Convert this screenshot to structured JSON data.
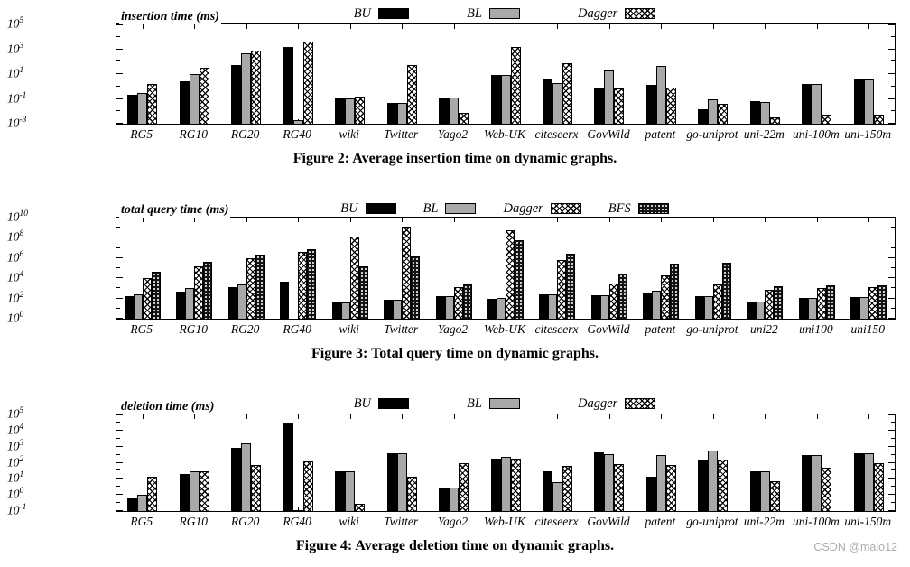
{
  "watermark": "CSDN @malo12",
  "colors": {
    "bar_black": "#000000",
    "bar_gray": "#a9a9a9",
    "axis": "#000000",
    "watermark_gray": "#adadad"
  },
  "chart_data": [
    {
      "type": "bar",
      "title": "insertion time (ms)",
      "caption": "Figure 2: Average insertion time on dynamic graphs.",
      "ylog": true,
      "ylim_exp": [
        -3,
        5
      ],
      "ytick_exps": [
        5,
        3,
        1,
        -1,
        -3
      ],
      "yminor_exps": [
        4,
        2,
        0,
        -2
      ],
      "legend_position": "top-center",
      "categories": [
        "RG5",
        "RG10",
        "RG20",
        "RG40",
        "wiki",
        "Twitter",
        "Yago2",
        "Web-UK",
        "citeseerx",
        "GovWild",
        "patent",
        "go-uniprot",
        "uni-22m",
        "uni-100m",
        "uni-150m"
      ],
      "series": [
        {
          "name": "BU",
          "pattern": "solid-black",
          "values": [
            0.2,
            2.5,
            50,
            1600,
            0.12,
            0.05,
            0.13,
            8,
            4,
            0.8,
            1.3,
            0.015,
            0.07,
            1.6,
            4
          ]
        },
        {
          "name": "BL",
          "pattern": "solid-gray",
          "values": [
            0.3,
            10,
            500,
            0.002,
            0.11,
            0.05,
            0.12,
            8,
            2,
            20,
            45,
            0.09,
            0.06,
            1.6,
            3.5
          ]
        },
        {
          "name": "Dagger",
          "pattern": "crosshatch",
          "values": [
            1.5,
            32,
            800,
            4000,
            0.16,
            56,
            0.007,
            1600,
            80,
            0.65,
            0.8,
            0.04,
            0.003,
            0.005,
            0.005
          ]
        }
      ]
    },
    {
      "type": "bar",
      "title": "total query time (ms)",
      "caption": "Figure 3: Total query time on dynamic graphs.",
      "ylog": true,
      "ylim_exp": [
        0,
        10
      ],
      "ytick_exps": [
        10,
        8,
        6,
        4,
        2,
        0
      ],
      "yminor_exps": [
        9,
        7,
        5,
        3,
        1
      ],
      "legend_position": "top-center",
      "categories": [
        "RG5",
        "RG10",
        "RG20",
        "RG40",
        "wiki",
        "Twitter",
        "Yago2",
        "Web-UK",
        "citeseerx",
        "GovWild",
        "patent",
        "go-uniprot",
        "uni22",
        "uni100",
        "uni150"
      ],
      "series": [
        {
          "name": "BU",
          "pattern": "solid-black",
          "values": [
            160,
            500,
            1300,
            5000,
            40,
            80,
            160,
            100,
            250,
            200,
            400,
            160,
            50,
            110,
            130
          ]
        },
        {
          "name": "BL",
          "pattern": "solid-gray",
          "values": [
            250,
            1000,
            2500,
            null,
            42,
            82,
            165,
            110,
            260,
            210,
            600,
            170,
            55,
            115,
            135
          ]
        },
        {
          "name": "Dagger",
          "pattern": "crosshatch",
          "values": [
            10000,
            160000,
            1000000,
            4000000,
            130000000,
            1300000000,
            1300,
            600000000,
            600000,
            3000,
            20000,
            2500,
            800,
            1100,
            1400
          ]
        },
        {
          "name": "BFS",
          "pattern": "dense-crosshatch",
          "values": [
            40000,
            400000,
            2000000,
            8000000,
            160000,
            1600000,
            2500,
            60000000,
            2500000,
            28000,
            270000,
            330000,
            1600,
            2000,
            2000
          ]
        }
      ]
    },
    {
      "type": "bar",
      "title": "deletion time (ms)",
      "caption": "Figure 4: Average deletion time on dynamic graphs.",
      "ylog": true,
      "ylim_exp": [
        -1,
        5
      ],
      "ytick_exps": [
        5,
        4,
        3,
        2,
        1,
        0,
        -1
      ],
      "yminor_exps": [
        4.5,
        3.5,
        2.5,
        1.5,
        0.5,
        -0.5
      ],
      "legend_position": "top-center",
      "categories": [
        "RG5",
        "RG10",
        "RG20",
        "RG40",
        "wiki",
        "Twitter",
        "Yago2",
        "Web-UK",
        "citeseerx",
        "GovWild",
        "patent",
        "go-uniprot",
        "uni-22m",
        "uni-100m",
        "uni-150m"
      ],
      "series": [
        {
          "name": "BU",
          "pattern": "solid-black",
          "values": [
            0.6,
            19,
            800,
            28000,
            30,
            400,
            3,
            180,
            28,
            470,
            13,
            150,
            30,
            320,
            400
          ]
        },
        {
          "name": "BL",
          "pattern": "solid-gray",
          "values": [
            1.0,
            28,
            1600,
            0.12,
            30,
            400,
            3,
            230,
            6,
            360,
            320,
            550,
            30,
            320,
            400
          ]
        },
        {
          "name": "Dagger",
          "pattern": "crosshatch",
          "values": [
            14,
            28,
            70,
            120,
            0.3,
            14,
            90,
            180,
            60,
            80,
            70,
            160,
            7,
            50,
            100
          ]
        }
      ]
    }
  ]
}
